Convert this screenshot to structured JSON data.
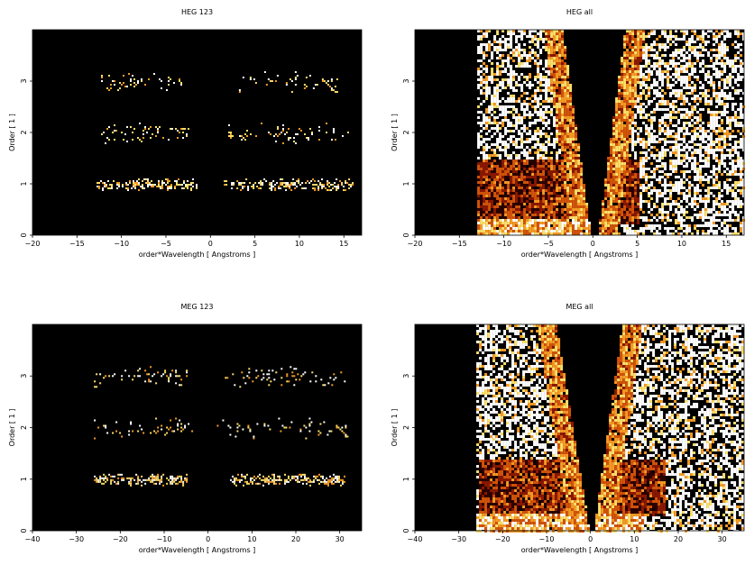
{
  "chart_data": [
    {
      "type": "heatmap",
      "title": "HEG 123",
      "xlabel": "order*Wavelength [ Angstroms ]",
      "ylabel": "Order [ 1 ]",
      "xlim": [
        -20,
        17
      ],
      "ylim": [
        0,
        4
      ],
      "x_ticks": [
        -20,
        -15,
        -10,
        -5,
        0,
        5,
        10,
        15
      ],
      "y_ticks": [
        0,
        1,
        2,
        3
      ],
      "background": "#000000",
      "colormap": [
        "#2b0000",
        "#8a1800",
        "#d2540a",
        "#f59b25",
        "#fde06a",
        "#ffffff"
      ],
      "bands": [
        {
          "order": 1,
          "ranges": [
            [
              -12.8,
              -1.5
            ],
            [
              1.5,
              16.0
            ]
          ],
          "intensity": 0.85
        },
        {
          "order": 2,
          "ranges": [
            [
              -12.5,
              -2.5
            ],
            [
              2.0,
              15.5
            ]
          ],
          "intensity": 0.65
        },
        {
          "order": 3,
          "ranges": [
            [
              -12.5,
              -3.2
            ],
            [
              3.0,
              14.5
            ]
          ],
          "intensity": 0.6
        }
      ]
    },
    {
      "type": "heatmap",
      "title": "HEG all",
      "xlabel": "order*Wavelength [ Angstroms ]",
      "ylabel": "Order [ 1 ]",
      "xlim": [
        -20,
        17
      ],
      "ylim": [
        0,
        4
      ],
      "x_ticks": [
        -20,
        -15,
        -10,
        -5,
        0,
        5,
        10,
        15
      ],
      "y_ticks": [
        0,
        1,
        2,
        3
      ],
      "background": "#000000",
      "colormap": [
        "#2b0000",
        "#8a1800",
        "#d2540a",
        "#f59b25",
        "#fde06a",
        "#ffffff"
      ],
      "coverage_x": [
        -13,
        17
      ],
      "gap_wedge": {
        "bottom_x": [
          -0.3,
          0.4
        ],
        "top_x": [
          -3.5,
          3.5
        ]
      },
      "bright_low_order_band": {
        "y": [
          0.25,
          1.5
        ],
        "x": [
          -13,
          5
        ]
      }
    },
    {
      "type": "heatmap",
      "title": "MEG 123",
      "xlabel": "order*Wavelength [ Angstroms ]",
      "ylabel": "Order [ 1 ]",
      "xlim": [
        -40,
        35
      ],
      "ylim": [
        0,
        4
      ],
      "x_ticks": [
        -40,
        -30,
        -20,
        -10,
        0,
        10,
        20,
        30
      ],
      "y_ticks": [
        0,
        1,
        2,
        3
      ],
      "background": "#000000",
      "colormap": [
        "#2b0000",
        "#8a1800",
        "#d2540a",
        "#f59b25",
        "#fde06a",
        "#ffffff"
      ],
      "bands": [
        {
          "order": 1,
          "ranges": [
            [
              -26,
              -5
            ],
            [
              5,
              31
            ]
          ],
          "intensity": 0.95
        },
        {
          "order": 2,
          "ranges": [
            [
              -26,
              -3
            ],
            [
              2,
              32
            ]
          ],
          "intensity": 0.6
        },
        {
          "order": 3,
          "ranges": [
            [
              -26,
              -5
            ],
            [
              3,
              32
            ]
          ],
          "intensity": 0.55
        }
      ]
    },
    {
      "type": "heatmap",
      "title": "MEG all",
      "xlabel": "order*Wavelength [ Angstroms ]",
      "ylabel": "Order [ 1 ]",
      "xlim": [
        -40,
        35
      ],
      "ylim": [
        0,
        4
      ],
      "x_ticks": [
        -40,
        -30,
        -20,
        -10,
        0,
        10,
        20,
        30
      ],
      "y_ticks": [
        0,
        1,
        2,
        3
      ],
      "background": "#000000",
      "colormap": [
        "#2b0000",
        "#8a1800",
        "#d2540a",
        "#f59b25",
        "#fde06a",
        "#ffffff"
      ],
      "coverage_x": [
        -26,
        35
      ],
      "gap_wedge": {
        "bottom_x": [
          -0.4,
          0.5
        ],
        "top_x": [
          -8,
          7
        ]
      },
      "bright_low_order_band": {
        "y": [
          0.3,
          1.4
        ],
        "x": [
          -26,
          17
        ]
      }
    }
  ]
}
